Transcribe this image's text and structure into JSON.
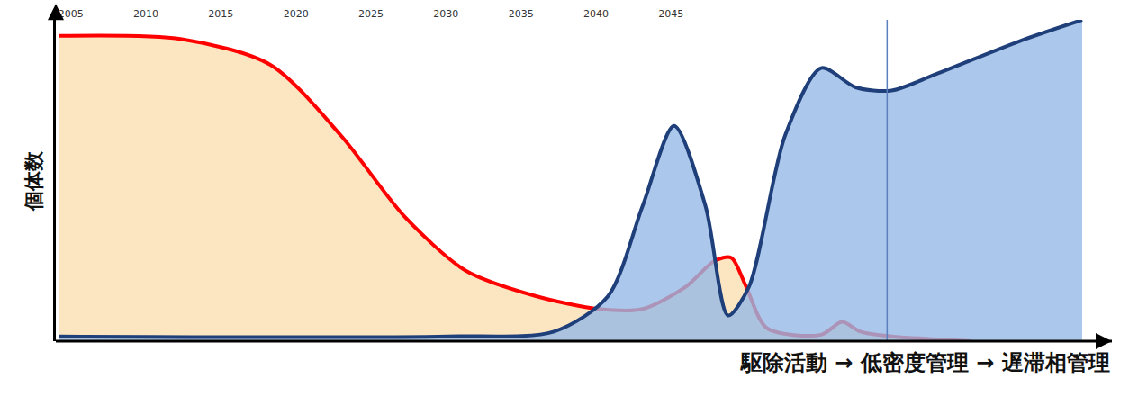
{
  "chart_data": {
    "type": "area",
    "xlabel": "駆除活動 → 低密度管理 → 遅滞相管理",
    "ylabel": "個体数",
    "xlim": [
      2004,
      2073
    ],
    "xticks": [
      2005,
      2010,
      2015,
      2020,
      2025,
      2030,
      2035,
      2040,
      2045
    ],
    "ylim": [
      0,
      100
    ],
    "tick_labels": "x",
    "grid": false,
    "vlines": [
      2059.4
    ],
    "series": [
      {
        "color": "#ff0000",
        "x": [
          2004.2,
          2012.4,
          2018.3,
          2023,
          2027.2,
          2031.3,
          2036,
          2040.2,
          2043.1,
          2046,
          2047.9,
          2049,
          2050,
          2051.4,
          2055,
          2056.4,
          2057.6,
          2059.7,
          2065
        ],
        "values": [
          95,
          94,
          86,
          64,
          39,
          22,
          14,
          10,
          10,
          17,
          25,
          26,
          17,
          4,
          2,
          6,
          3,
          1.5,
          0
        ]
      },
      {
        "color": "#1f3f7a",
        "x": [
          2004.2,
          2030.1,
          2037.2,
          2040.8,
          2043.1,
          2045.2,
          2047.3,
          2048.8,
          2050.2,
          2052.6,
          2055,
          2057.3,
          2059.7,
          2062.6,
          2068.6,
          2072.4
        ],
        "values": [
          1.5,
          1.5,
          3,
          14,
          42,
          67,
          42,
          8,
          17,
          64,
          85,
          79,
          78,
          83,
          94,
          100
        ]
      }
    ]
  }
}
